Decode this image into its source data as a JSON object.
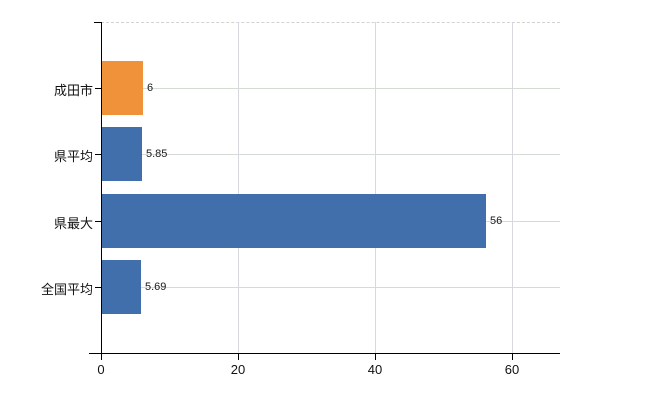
{
  "chart_data": {
    "type": "bar",
    "orientation": "horizontal",
    "title": "",
    "xlabel": "",
    "ylabel": "",
    "categories": [
      "成田市",
      "県平均",
      "県最大",
      "全国平均"
    ],
    "values": [
      6,
      5.85,
      56,
      5.69
    ],
    "value_labels": [
      "6",
      "5.85",
      "56",
      "5.69"
    ],
    "bar_colors": [
      "#f0923a",
      "#406fab",
      "#406fab",
      "#406fab"
    ],
    "x_ticks": [
      0,
      20,
      40,
      60
    ],
    "x_tick_labels": [
      "0",
      "20",
      "40",
      "60"
    ],
    "xlim": [
      0,
      67
    ],
    "grid": true,
    "legend": false
  },
  "colors": {
    "background": "#ffffff",
    "axis": "#000000",
    "grid_horizontal": "#d5dcd5",
    "grid_vertical": "#d8d8de",
    "top_border_dashed": "#d2d2d2",
    "text": "#111111",
    "orange_series": "#f0923a",
    "blue_series": "#406fab"
  }
}
